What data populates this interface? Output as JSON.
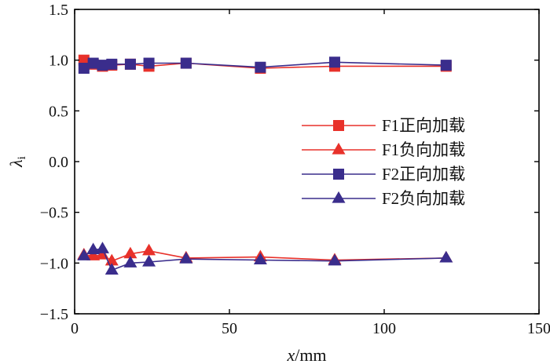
{
  "chart_data": {
    "type": "line",
    "xlabel_var": "x",
    "xlabel_unit": "/mm",
    "ylabel_var": "λ",
    "ylabel_sub": "i",
    "xlim": [
      0,
      150
    ],
    "ylim": [
      -1.5,
      1.5
    ],
    "xticks": [
      0,
      50,
      100,
      150
    ],
    "yticks": [
      -1.5,
      -1.0,
      -0.5,
      0.0,
      0.5,
      1.0,
      1.5
    ],
    "xtick_labels": [
      "0",
      "50",
      "100",
      "150"
    ],
    "ytick_labels": [
      "−1.5",
      "−1.0",
      "−0.5",
      "0.0",
      "0.5",
      "1.0",
      "1.5"
    ],
    "grid": false,
    "legend_position": "center-right",
    "series": [
      {
        "name": "F1正向加载",
        "color": "#e8312a",
        "marker": "square",
        "x": [
          3,
          6,
          9,
          12,
          18,
          24,
          36,
          60,
          84,
          120
        ],
        "y": [
          1.0,
          0.96,
          0.94,
          0.95,
          0.96,
          0.94,
          0.97,
          0.92,
          0.94,
          0.94
        ]
      },
      {
        "name": "F1负向加载",
        "color": "#e8312a",
        "marker": "triangle",
        "x": [
          3,
          6,
          9,
          12,
          18,
          24,
          36,
          60,
          84,
          120
        ],
        "y": [
          -0.92,
          -0.93,
          -0.92,
          -0.98,
          -0.91,
          -0.88,
          -0.95,
          -0.94,
          -0.97,
          -0.95
        ]
      },
      {
        "name": "F2正向加载",
        "color": "#3a2d8c",
        "marker": "square",
        "x": [
          3,
          6,
          9,
          12,
          18,
          24,
          36,
          60,
          84,
          120
        ],
        "y": [
          0.92,
          0.97,
          0.95,
          0.96,
          0.96,
          0.97,
          0.97,
          0.93,
          0.98,
          0.95
        ]
      },
      {
        "name": "F2负向加载",
        "color": "#3a2d8c",
        "marker": "triangle",
        "x": [
          3,
          6,
          9,
          12,
          18,
          24,
          36,
          60,
          84,
          120
        ],
        "y": [
          -0.93,
          -0.87,
          -0.86,
          -1.07,
          -1.0,
          -0.99,
          -0.96,
          -0.97,
          -0.98,
          -0.95
        ]
      }
    ]
  }
}
